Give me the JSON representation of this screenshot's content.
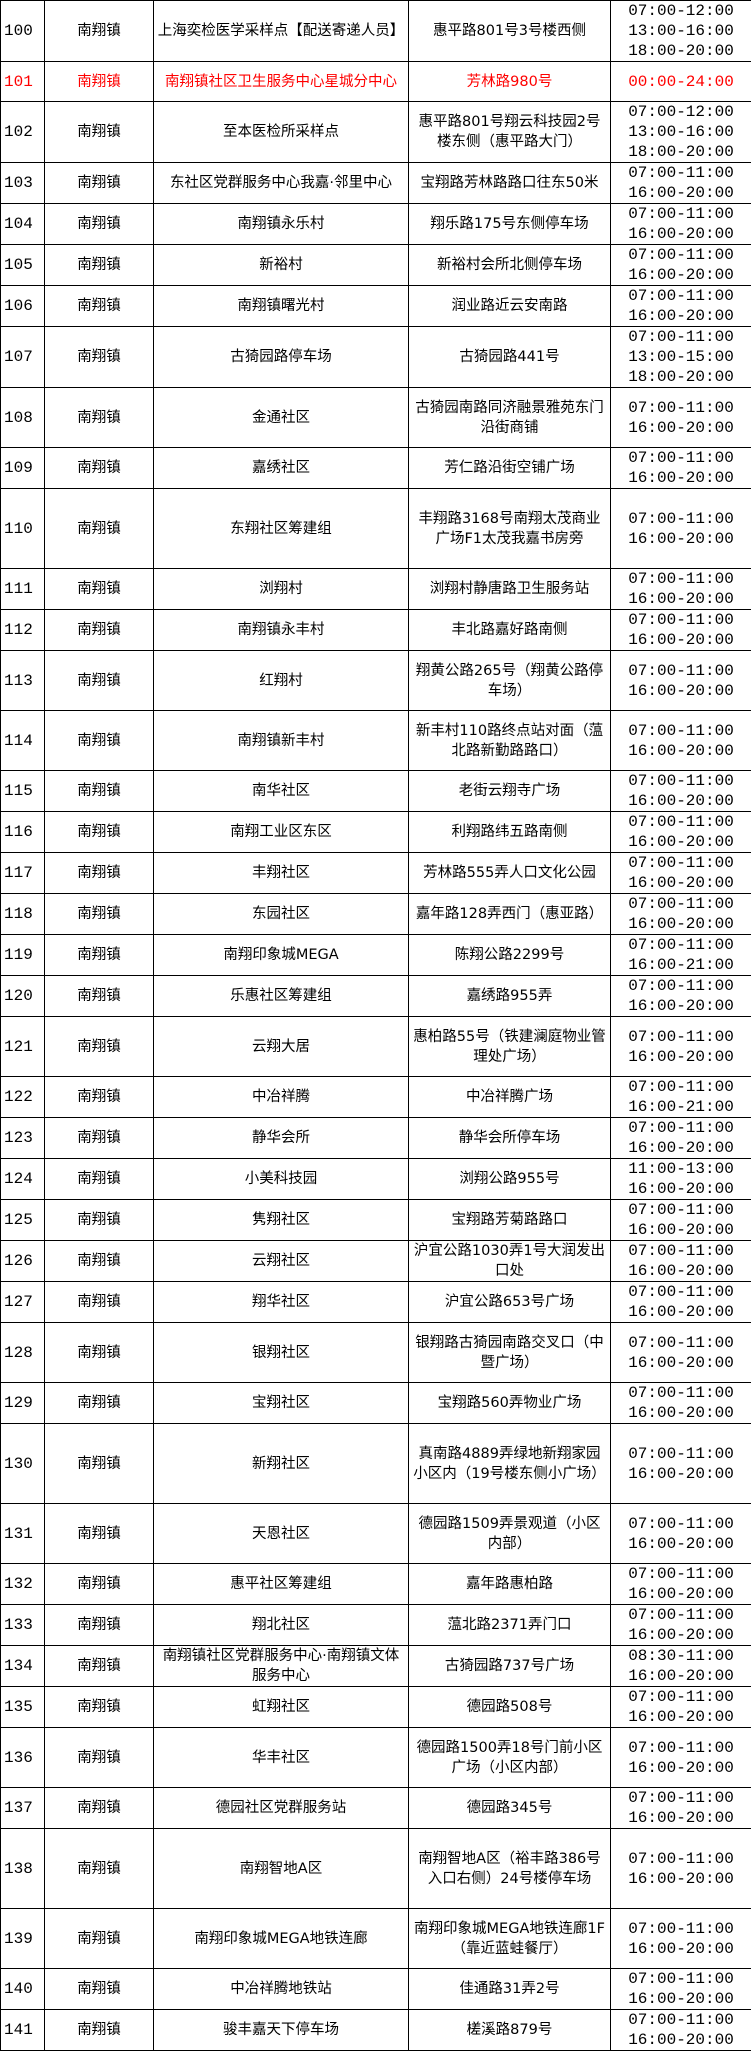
{
  "highlight_color": "#ff0000",
  "rows": [
    {
      "no": "100",
      "town": "南翔镇",
      "name": "上海奕检医学采样点【配送寄递人员】",
      "addr": "惠平路801号3号楼西侧",
      "times": [
        "07:00-12:00",
        "13:00-16:00",
        "18:00-20:00"
      ]
    },
    {
      "no": "101",
      "town": "南翔镇",
      "name": "南翔镇社区卫生服务中心星城分中心",
      "addr": "芳林路980号",
      "times": [
        "00:00-24:00"
      ],
      "highlight": true
    },
    {
      "no": "102",
      "town": "南翔镇",
      "name": "至本医检所采样点",
      "addr": "惠平路801号翔云科技园2号楼东侧（惠平路大门）",
      "times": [
        "07:00-12:00",
        "13:00-16:00",
        "18:00-20:00"
      ]
    },
    {
      "no": "103",
      "town": "南翔镇",
      "name": "东社区党群服务中心我嘉·邻里中心",
      "addr": "宝翔路芳林路路口往东50米",
      "times": [
        "07:00-11:00",
        "16:00-20:00"
      ]
    },
    {
      "no": "104",
      "town": "南翔镇",
      "name": "南翔镇永乐村",
      "addr": "翔乐路175号东侧停车场",
      "times": [
        "07:00-11:00",
        "16:00-20:00"
      ]
    },
    {
      "no": "105",
      "town": "南翔镇",
      "name": "新裕村",
      "addr": "新裕村会所北侧停车场",
      "times": [
        "07:00-11:00",
        "16:00-20:00"
      ]
    },
    {
      "no": "106",
      "town": "南翔镇",
      "name": "南翔镇曙光村",
      "addr": "润业路近云安南路",
      "times": [
        "07:00-11:00",
        "16:00-20:00"
      ]
    },
    {
      "no": "107",
      "town": "南翔镇",
      "name": "古猗园路停车场",
      "addr": "古猗园路441号",
      "times": [
        "07:00-11:00",
        "13:00-15:00",
        "18:00-20:00"
      ]
    },
    {
      "no": "108",
      "town": "南翔镇",
      "name": "金通社区",
      "addr": "古猗园南路同济融景雅苑东门沿街商铺",
      "times": [
        "07:00-11:00",
        "16:00-20:00"
      ]
    },
    {
      "no": "109",
      "town": "南翔镇",
      "name": "嘉绣社区",
      "addr": "芳仁路沿街空铺广场",
      "times": [
        "07:00-11:00",
        "16:00-20:00"
      ]
    },
    {
      "no": "110",
      "town": "南翔镇",
      "name": "东翔社区筹建组",
      "addr": "丰翔路3168号南翔太茂商业广场F1太茂我嘉书房旁",
      "times": [
        "07:00-11:00",
        "16:00-20:00"
      ]
    },
    {
      "no": "111",
      "town": "南翔镇",
      "name": "浏翔村",
      "addr": "浏翔村静唐路卫生服务站",
      "times": [
        "07:00-11:00",
        "16:00-20:00"
      ]
    },
    {
      "no": "112",
      "town": "南翔镇",
      "name": "南翔镇永丰村",
      "addr": "丰北路嘉好路南侧",
      "times": [
        "07:00-11:00",
        "16:00-20:00"
      ]
    },
    {
      "no": "113",
      "town": "南翔镇",
      "name": "红翔村",
      "addr": "翔黄公路265号（翔黄公路停车场）",
      "times": [
        "07:00-11:00",
        "16:00-20:00"
      ]
    },
    {
      "no": "114",
      "town": "南翔镇",
      "name": "南翔镇新丰村",
      "addr": "新丰村110路终点站对面（蕰北路新勤路路口）",
      "times": [
        "07:00-11:00",
        "16:00-20:00"
      ]
    },
    {
      "no": "115",
      "town": "南翔镇",
      "name": "南华社区",
      "addr": "老街云翔寺广场",
      "times": [
        "07:00-11:00",
        "16:00-20:00"
      ]
    },
    {
      "no": "116",
      "town": "南翔镇",
      "name": "南翔工业区东区",
      "addr": "利翔路纬五路南侧",
      "times": [
        "07:00-11:00",
        "16:00-20:00"
      ]
    },
    {
      "no": "117",
      "town": "南翔镇",
      "name": "丰翔社区",
      "addr": "芳林路555弄人口文化公园",
      "times": [
        "07:00-11:00",
        "16:00-20:00"
      ]
    },
    {
      "no": "118",
      "town": "南翔镇",
      "name": "东园社区",
      "addr": "嘉年路128弄西门（惠亚路）",
      "times": [
        "07:00-11:00",
        "16:00-20:00"
      ]
    },
    {
      "no": "119",
      "town": "南翔镇",
      "name": "南翔印象城MEGA",
      "addr": "陈翔公路2299号",
      "times": [
        "07:00-11:00",
        "16:00-21:00"
      ]
    },
    {
      "no": "120",
      "town": "南翔镇",
      "name": "乐惠社区筹建组",
      "addr": "嘉绣路955弄",
      "times": [
        "07:00-11:00",
        "16:00-20:00"
      ]
    },
    {
      "no": "121",
      "town": "南翔镇",
      "name": "云翔大居",
      "addr": "惠柏路55号（铁建澜庭物业管理处广场）",
      "times": [
        "07:00-11:00",
        "16:00-20:00"
      ]
    },
    {
      "no": "122",
      "town": "南翔镇",
      "name": "中冶祥腾",
      "addr": "中冶祥腾广场",
      "times": [
        "07:00-11:00",
        "16:00-21:00"
      ]
    },
    {
      "no": "123",
      "town": "南翔镇",
      "name": "静华会所",
      "addr": "静华会所停车场",
      "times": [
        "07:00-11:00",
        "16:00-20:00"
      ]
    },
    {
      "no": "124",
      "town": "南翔镇",
      "name": "小美科技园",
      "addr": "浏翔公路955号",
      "times": [
        "11:00-13:00",
        "16:00-20:00"
      ]
    },
    {
      "no": "125",
      "town": "南翔镇",
      "name": "隽翔社区",
      "addr": "宝翔路芳菊路路口",
      "times": [
        "07:00-11:00",
        "16:00-20:00"
      ]
    },
    {
      "no": "126",
      "town": "南翔镇",
      "name": "云翔社区",
      "addr": "沪宜公路1030弄1号大润发出口处",
      "times": [
        "07:00-11:00",
        "16:00-20:00"
      ]
    },
    {
      "no": "127",
      "town": "南翔镇",
      "name": "翔华社区",
      "addr": "沪宜公路653号广场",
      "times": [
        "07:00-11:00",
        "16:00-20:00"
      ]
    },
    {
      "no": "128",
      "town": "南翔镇",
      "name": "银翔社区",
      "addr": "银翔路古猗园南路交叉口（中暨广场）",
      "times": [
        "07:00-11:00",
        "16:00-20:00"
      ]
    },
    {
      "no": "129",
      "town": "南翔镇",
      "name": "宝翔社区",
      "addr": "宝翔路560弄物业广场",
      "times": [
        "07:00-11:00",
        "16:00-20:00"
      ]
    },
    {
      "no": "130",
      "town": "南翔镇",
      "name": "新翔社区",
      "addr": "真南路4889弄绿地新翔家园小区内（19号楼东侧小广场）",
      "times": [
        "07:00-11:00",
        "16:00-20:00"
      ]
    },
    {
      "no": "131",
      "town": "南翔镇",
      "name": "天恩社区",
      "addr": "德园路1509弄景观道（小区内部）",
      "times": [
        "07:00-11:00",
        "16:00-20:00"
      ]
    },
    {
      "no": "132",
      "town": "南翔镇",
      "name": "惠平社区筹建组",
      "addr": "嘉年路惠柏路",
      "times": [
        "07:00-11:00",
        "16:00-20:00"
      ]
    },
    {
      "no": "133",
      "town": "南翔镇",
      "name": "翔北社区",
      "addr": "蕰北路2371弄门口",
      "times": [
        "07:00-11:00",
        "16:00-20:00"
      ]
    },
    {
      "no": "134",
      "town": "南翔镇",
      "name": "南翔镇社区党群服务中心·南翔镇文体服务中心",
      "addr": "古猗园路737号广场",
      "times": [
        "08:30-11:00",
        "16:00-20:00"
      ]
    },
    {
      "no": "135",
      "town": "南翔镇",
      "name": "虹翔社区",
      "addr": "德园路508号",
      "times": [
        "07:00-11:00",
        "16:00-20:00"
      ]
    },
    {
      "no": "136",
      "town": "南翔镇",
      "name": "华丰社区",
      "addr": "德园路1500弄18号门前小区广场（小区内部）",
      "times": [
        "07:00-11:00",
        "16:00-20:00"
      ]
    },
    {
      "no": "137",
      "town": "南翔镇",
      "name": "德园社区党群服务站",
      "addr": "德园路345号",
      "times": [
        "07:00-11:00",
        "16:00-20:00"
      ]
    },
    {
      "no": "138",
      "town": "南翔镇",
      "name": "南翔智地A区",
      "addr": "南翔智地A区（裕丰路386号入口右侧）24号楼停车场",
      "times": [
        "07:00-11:00",
        "16:00-20:00"
      ]
    },
    {
      "no": "139",
      "town": "南翔镇",
      "name": "南翔印象城MEGA地铁连廊",
      "addr": "南翔印象城MEGA地铁连廊1F（靠近蓝蛙餐厅）",
      "times": [
        "07:00-11:00",
        "16:00-20:00"
      ]
    },
    {
      "no": "140",
      "town": "南翔镇",
      "name": "中冶祥腾地铁站",
      "addr": "佳通路31弄2号",
      "times": [
        "07:00-11:00",
        "16:00-20:00"
      ]
    },
    {
      "no": "141",
      "town": "南翔镇",
      "name": "骏丰嘉天下停车场",
      "addr": "槎溪路879号",
      "times": [
        "07:00-11:00",
        "16:00-20:00"
      ]
    }
  ]
}
